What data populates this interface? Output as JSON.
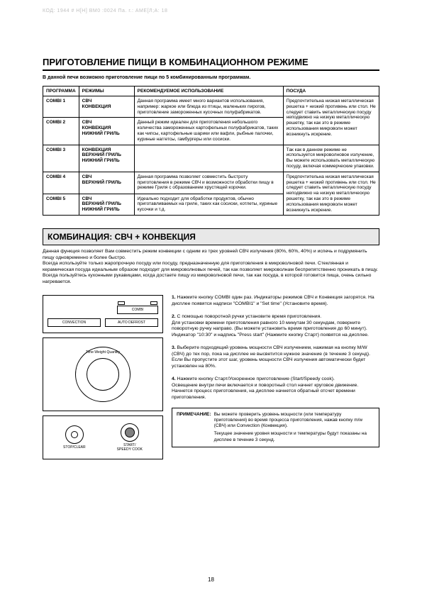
{
  "header_code": "КОД: 1944 # H[H] ВМ0 :0024 Па. г.: АМЕ[Л;А: 18",
  "main_title": "ПРИГОТОВЛЕНИЕ ПИЩИ В КОМБИНАЦИОННОМ РЕЖИМЕ",
  "intro": "В данной печи возможно приготовление пищи по 5 комбинированным программам.",
  "table": {
    "headers": [
      "ПРОГРАММА",
      "РЕЖИМЫ",
      "РЕКОМЕНДУЕМОЕ ИСПОЛЬЗОВАНИЕ",
      "ПОСУДА"
    ],
    "rows": [
      {
        "prog": "COMBI 1",
        "modes": "СВЧ\nКОНВЕКЦИЯ",
        "usage": "Данная программа имеет много вариантов использования, например: жаркое или блюда из птицы, маленьких пирогов, приготовление замороженных кусочных полуфабрикатов.",
        "dish": "Предпочтительна низкая металлическая решетка + низкий противень или стол. Не следует ставить металлическую посуду неподвижно на низкую металлическую решетку, так как это в режиме использования микроволн может возникнуть искрение."
      },
      {
        "prog": "COMBI 2",
        "modes": "СВЧ\nКОНВЕКЦИЯ\nНИЖНИЙ ГРИЛЬ",
        "usage": "Данный режим идеален для приготовления небольшого количества замороженных картофельных полуфабрикатов, таких как чипсы, картофельные шарики или вафли, рыбные палочки, куриные наггетсы, гамбургеры или сосиски.",
        "dish": ""
      },
      {
        "prog": "COMBI 3",
        "modes": "КОНВЕКЦИЯ\nВЕРХНИЙ ГРИЛЬ\nНИЖНИЙ ГРИЛЬ",
        "usage": "",
        "dish": "Так как в данном режиме не используется микроволновое излучение, Вы можете использовать металлическую посуду, включая коммерческие упаковки."
      },
      {
        "prog": "COMBI 4",
        "modes": "СВЧ\nВЕРХНИЙ ГРИЛЬ",
        "usage": "Данная программа позволяет совместить быстроту приготовления в режиме СВЧ и возможности обработки пищу в режиме Гриля с образованием хрустящей корочки.",
        "dish": "Предпочтительна низкая металлическая решетка + низкий противень или стол. Не следует ставить металлическую посуду неподвижно на низкую металлическую решетку, так как это в режиме использования микроволн может возникнуть искрение."
      },
      {
        "prog": "COMBI 5",
        "modes": "СВЧ\nВЕРХНИЙ ГРИЛЬ\nНИЖНИЙ ГРИЛЬ",
        "usage": "Идеально подходит для обработки продуктов, обычно приготавливаемых на гриле, таких как сосиски, котлеты, куриные кусочки и т.д.",
        "dish": ""
      }
    ]
  },
  "section2_title": "КОМБИНАЦИЯ: СВЧ + КОНВЕКЦИЯ",
  "section2_text": "Данная функция позволяет Вам совместить режим конвекции с одним из трех уровней СВЧ излучения (80%, 60%, 40%) и испечь и подрумянить пищу одновременно и более быстро.\nВсегда используйте только жаропрочную посуду или посуду, предназначенную для приготовления в микроволновой печи. Стеклянная и керамическая посуда идеальным образом подходит для микроволновых печей, так как позволяет микроволнам беспрепятственно проникать в пищу. Всегда пользуйтесь кухонными рукавицами, когда достаете пищу из микроволновой печи, так как посуда, в которой готовится пища, очень сильно нагревается.",
  "panel": {
    "combi_btn": "COMBI",
    "convection_btn": "CONVECTION",
    "autodefrost_btn": "AUTO DEFROST",
    "dial_text": "Time·Weight·Quantity",
    "stop_btn": "STOP/CLEAR",
    "start_btn": "START/\nSPEEDY COOK"
  },
  "steps": [
    "1. Нажмите кнопку COMBI один раз. Индикаторы режимов СВЧ и Конвекция загорятся. На дисплее появятся надписи \"COMBI1\" и \"Set time\" (Установите время).",
    "2. С помощью поворотной ручки установите время приготовления.\nДля установки времени приготовления равного 10 минутам 30 секундам, поверните поворотную ручку направо. (Вы можете установить время приготовления до 60 минут). Индикатор \"10:30\" и надпись \"Press start\" (Нажмите кнопку Старт) появятся на дисплее.",
    "3. Выберите подходящий уровень мощности СВЧ излучением, нажимая на кнопку M/W (СВЧ) до тех пор, пока на дисплее не высветится нужное значение (в течение 3 секунд). Если Вы пропустите этот шаг, уровень мощности СВЧ излучения автоматически будет установлен на 80%.",
    "4. Нажмите кнопку Старт/Ускоренное приготовление (Start/Speedy cook).\nОсвещение внутри печи включается и поворотный стол начнет круговое движение. Начнется процесс приготовления, на дисплее начнется обратный отсчет времени приготовления."
  ],
  "note": {
    "label": "ПРИМЕЧАНИЕ:",
    "text1": "Вы можете проверить уровень мощности (или температуру приготовления) во время процесса приготовления, нажав кнопку m/w (СВЧ) или Convection (Конвекция).",
    "text2": "Текущее значение уровня мощности и температуры будут показаны на дисплее в течение 3 секунд."
  },
  "page_number": "18"
}
